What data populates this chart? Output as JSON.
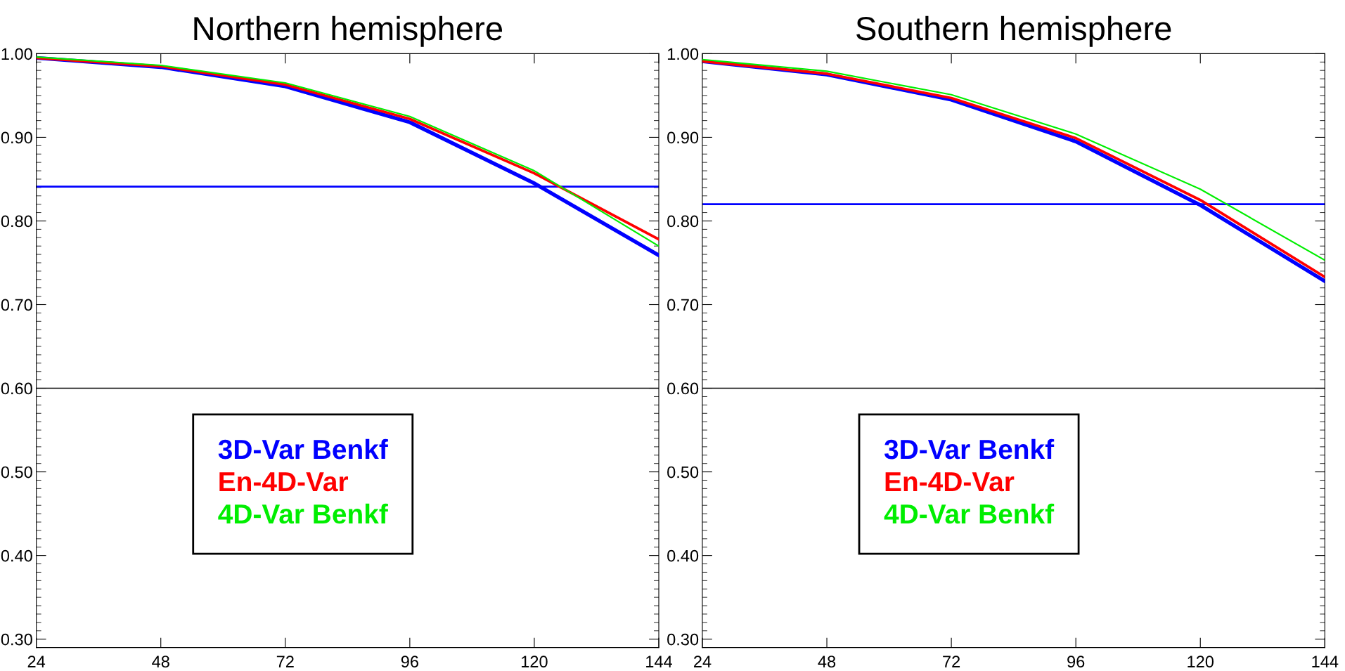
{
  "chart_data": [
    {
      "type": "line",
      "title": "Northern hemisphere",
      "x": [
        24,
        48,
        72,
        96,
        120,
        144
      ],
      "xlim": [
        24,
        144
      ],
      "xticks": [
        24,
        48,
        72,
        96,
        120,
        144
      ],
      "ylim": [
        0.29,
        1.0
      ],
      "yticks": [
        {
          "value": 0.3,
          "label": "0.30"
        },
        {
          "value": 0.4,
          "label": "0.40"
        },
        {
          "value": 0.5,
          "label": "0.50"
        },
        {
          "value": 0.6,
          "label": "0.60"
        },
        {
          "value": 0.7,
          "label": "0.70"
        },
        {
          "value": 0.8,
          "label": "0.80"
        },
        {
          "value": 0.9,
          "label": "0.90"
        },
        {
          "value": 1.0,
          "label": "1.00"
        }
      ],
      "grid": false,
      "legend": "bottom left",
      "marker": "none",
      "line_style": "solid",
      "series": [
        {
          "name": "3D-Var Benkf",
          "color": "#0000ff",
          "values": [
            0.995,
            0.984,
            0.961,
            0.918,
            0.845,
            0.759
          ]
        },
        {
          "name": "En-4D-Var",
          "color": "#ff0000",
          "values": [
            0.995,
            0.985,
            0.963,
            0.922,
            0.857,
            0.778
          ]
        },
        {
          "name": "4D-Var Benkf",
          "color": "#00ee00",
          "values": [
            0.996,
            0.986,
            0.965,
            0.925,
            0.86,
            0.77
          ]
        }
      ],
      "ref_lines": [
        {
          "axis": "y",
          "value": 0.841,
          "color": "#0000ff"
        },
        {
          "axis": "y",
          "value": 0.6,
          "color": "#000000"
        }
      ]
    },
    {
      "type": "line",
      "title": "Southern hemisphere",
      "x": [
        24,
        48,
        72,
        96,
        120,
        144
      ],
      "xlim": [
        24,
        144
      ],
      "xticks": [
        24,
        48,
        72,
        96,
        120,
        144
      ],
      "ylim": [
        0.29,
        1.0
      ],
      "yticks": [
        {
          "value": 0.3,
          "label": "0.30"
        },
        {
          "value": 0.4,
          "label": "0.40"
        },
        {
          "value": 0.5,
          "label": "0.50"
        },
        {
          "value": 0.6,
          "label": "0.60"
        },
        {
          "value": 0.7,
          "label": "0.70"
        },
        {
          "value": 0.8,
          "label": "0.80"
        },
        {
          "value": 0.9,
          "label": "0.90"
        },
        {
          "value": 1.0,
          "label": "1.00"
        }
      ],
      "grid": false,
      "legend": "bottom left",
      "marker": "none",
      "line_style": "solid",
      "series": [
        {
          "name": "3D-Var Benkf",
          "color": "#0000ff",
          "values": [
            0.991,
            0.975,
            0.945,
            0.895,
            0.819,
            0.728
          ]
        },
        {
          "name": "En-4D-Var",
          "color": "#ff0000",
          "values": [
            0.991,
            0.976,
            0.947,
            0.899,
            0.825,
            0.733
          ]
        },
        {
          "name": "4D-Var Benkf",
          "color": "#00ee00",
          "values": [
            0.993,
            0.979,
            0.951,
            0.904,
            0.838,
            0.753
          ]
        }
      ],
      "ref_lines": [
        {
          "axis": "y",
          "value": 0.82,
          "color": "#0000ff"
        },
        {
          "axis": "y",
          "value": 0.6,
          "color": "#000000"
        }
      ]
    }
  ]
}
